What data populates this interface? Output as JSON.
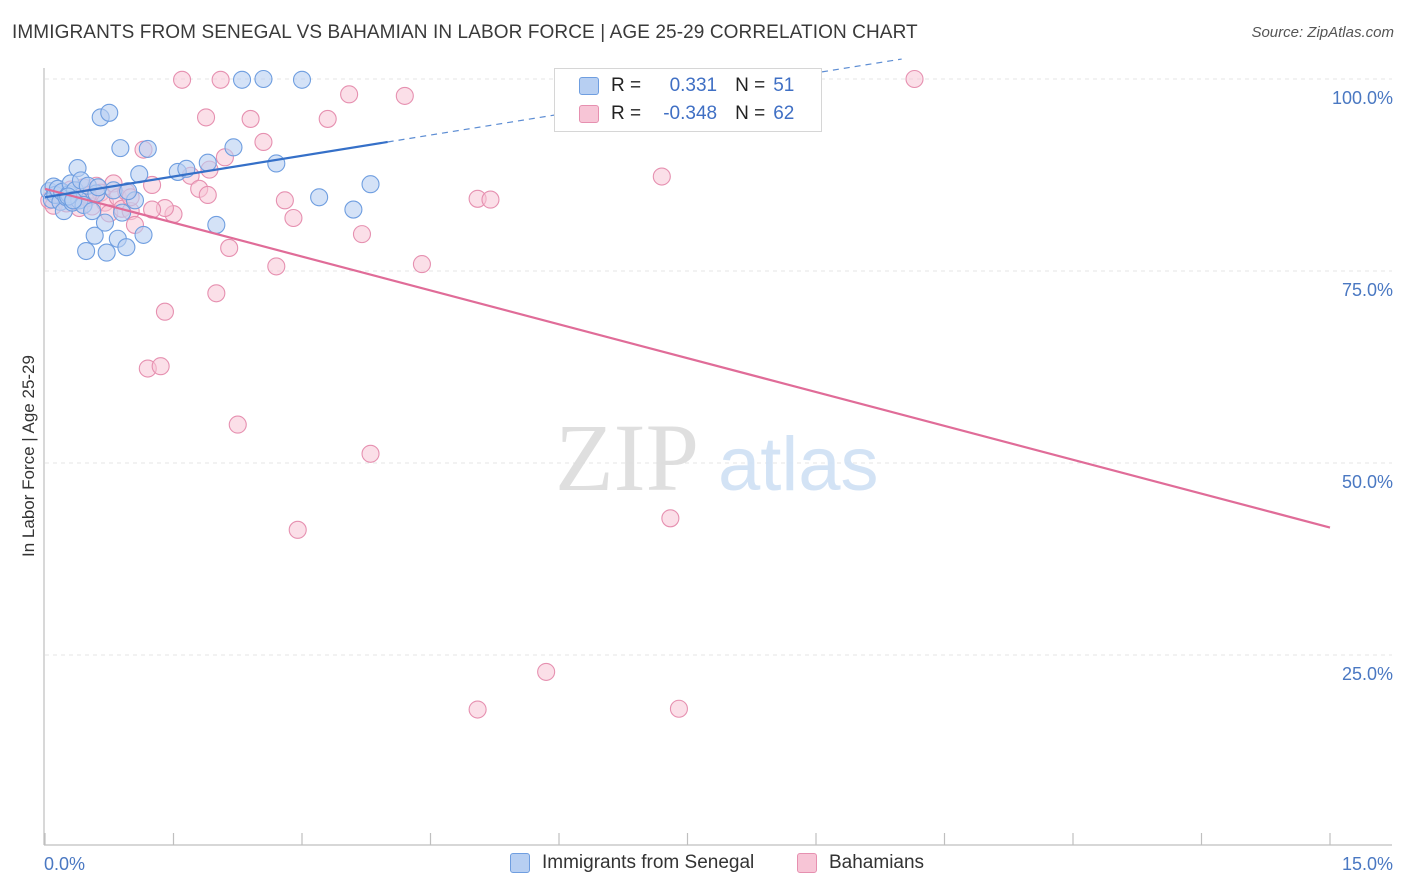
{
  "header": {
    "title": "IMMIGRANTS FROM SENEGAL VS BAHAMIAN IN LABOR FORCE | AGE 25-29 CORRELATION CHART",
    "source": "Source: ZipAtlas.com"
  },
  "watermark": {
    "zip": "ZIP",
    "atlas": "atlas"
  },
  "legend": {
    "rows": [
      {
        "r_label": "R =",
        "r_value": "0.331",
        "n_label": "N =",
        "n_value": "51"
      },
      {
        "r_label": "R =",
        "r_value": "-0.348",
        "n_label": "N =",
        "n_value": "62"
      }
    ]
  },
  "bottom_legend": {
    "senegal": "Immigrants from Senegal",
    "bahamians": "Bahamians"
  },
  "colors": {
    "senegal_fill": "#b7cff2",
    "senegal_stroke": "#6f9ee0",
    "senegal_line": "#3570c8",
    "bahamian_fill": "#f7c5d6",
    "bahamian_stroke": "#e690b0",
    "bahamian_line": "#e06c98",
    "tick_text": "#4a78c2",
    "grid": "#e4e4e4"
  },
  "chart_data": {
    "type": "scatter",
    "title": "IMMIGRANTS FROM SENEGAL VS BAHAMIAN IN LABOR FORCE | AGE 25-29 CORRELATION CHART",
    "xlabel": "",
    "ylabel": "In Labor Force | Age 25-29",
    "xlim": [
      0,
      15
    ],
    "ylim": [
      0,
      104
    ],
    "x_tick_labels": [
      "0.0%",
      "15.0%"
    ],
    "y_ticks": [
      25,
      50,
      75,
      100
    ],
    "y_tick_labels": [
      "25.0%",
      "50.0%",
      "75.0%",
      "100.0%"
    ],
    "grid": true,
    "series": [
      {
        "name": "Immigrants from Senegal",
        "r": 0.331,
        "n": 51,
        "trend": {
          "x": [
            0.0,
            4.0
          ],
          "y": [
            84.6,
            91.8
          ],
          "dashed_to": [
            10.0,
            102.6
          ]
        },
        "points": [
          [
            0.05,
            85.4
          ],
          [
            0.08,
            84.3
          ],
          [
            0.1,
            86.0
          ],
          [
            0.12,
            84.9
          ],
          [
            0.15,
            85.7
          ],
          [
            0.18,
            84.0
          ],
          [
            0.2,
            85.3
          ],
          [
            0.22,
            82.8
          ],
          [
            0.25,
            84.6
          ],
          [
            0.28,
            85.0
          ],
          [
            0.3,
            86.4
          ],
          [
            0.32,
            83.9
          ],
          [
            0.35,
            85.5
          ],
          [
            0.38,
            88.4
          ],
          [
            0.4,
            84.2
          ],
          [
            0.42,
            86.8
          ],
          [
            0.45,
            83.6
          ],
          [
            0.48,
            77.6
          ],
          [
            0.5,
            86.1
          ],
          [
            0.55,
            82.8
          ],
          [
            0.58,
            79.6
          ],
          [
            0.6,
            85.1
          ],
          [
            0.65,
            95.0
          ],
          [
            0.7,
            81.3
          ],
          [
            0.72,
            77.4
          ],
          [
            0.75,
            95.6
          ],
          [
            0.8,
            85.5
          ],
          [
            0.85,
            79.2
          ],
          [
            0.88,
            91.0
          ],
          [
            0.9,
            82.6
          ],
          [
            0.95,
            78.1
          ],
          [
            1.05,
            84.2
          ],
          [
            1.1,
            87.6
          ],
          [
            1.15,
            79.7
          ],
          [
            1.2,
            90.9
          ],
          [
            1.55,
            87.9
          ],
          [
            1.65,
            88.3
          ],
          [
            1.9,
            89.1
          ],
          [
            2.0,
            81.0
          ],
          [
            2.2,
            91.1
          ],
          [
            2.3,
            99.9
          ],
          [
            2.55,
            100.0
          ],
          [
            2.7,
            89.0
          ],
          [
            3.0,
            99.9
          ],
          [
            3.2,
            84.6
          ],
          [
            3.6,
            83.0
          ],
          [
            3.8,
            86.3
          ],
          [
            0.27,
            84.7
          ],
          [
            0.62,
            85.9
          ],
          [
            0.97,
            85.4
          ],
          [
            0.33,
            84.2
          ]
        ]
      },
      {
        "name": "Bahamians",
        "r": -0.348,
        "n": 62,
        "trend": {
          "x": [
            0.0,
            15.0
          ],
          "y": [
            85.7,
            41.6
          ]
        },
        "points": [
          [
            0.05,
            84.2
          ],
          [
            0.1,
            83.5
          ],
          [
            0.15,
            85.0
          ],
          [
            0.2,
            84.7
          ],
          [
            0.25,
            83.8
          ],
          [
            0.3,
            85.6
          ],
          [
            0.35,
            84.1
          ],
          [
            0.4,
            83.2
          ],
          [
            0.45,
            85.9
          ],
          [
            0.5,
            84.5
          ],
          [
            0.55,
            83.4
          ],
          [
            0.6,
            86.1
          ],
          [
            0.65,
            85.2
          ],
          [
            0.7,
            83.9
          ],
          [
            0.75,
            82.5
          ],
          [
            0.8,
            86.4
          ],
          [
            0.85,
            84.6
          ],
          [
            0.9,
            83.1
          ],
          [
            0.95,
            85.3
          ],
          [
            1.0,
            82.8
          ],
          [
            1.05,
            81.0
          ],
          [
            1.15,
            90.8
          ],
          [
            1.2,
            62.3
          ],
          [
            1.25,
            86.2
          ],
          [
            1.35,
            62.6
          ],
          [
            1.4,
            69.7
          ],
          [
            1.5,
            82.4
          ],
          [
            1.6,
            99.9
          ],
          [
            1.7,
            87.4
          ],
          [
            1.8,
            85.7
          ],
          [
            1.88,
            95.0
          ],
          [
            1.92,
            88.2
          ],
          [
            2.0,
            72.1
          ],
          [
            2.05,
            99.9
          ],
          [
            2.15,
            78.0
          ],
          [
            2.25,
            55.0
          ],
          [
            2.4,
            94.8
          ],
          [
            2.55,
            91.8
          ],
          [
            2.7,
            75.6
          ],
          [
            2.8,
            84.2
          ],
          [
            2.95,
            41.3
          ],
          [
            3.3,
            94.8
          ],
          [
            3.55,
            98.0
          ],
          [
            3.7,
            79.8
          ],
          [
            3.8,
            51.2
          ],
          [
            4.2,
            97.8
          ],
          [
            4.4,
            75.9
          ],
          [
            5.05,
            84.4
          ],
          [
            5.2,
            84.3
          ],
          [
            5.85,
            22.8
          ],
          [
            5.05,
            17.9
          ],
          [
            7.2,
            87.3
          ],
          [
            7.3,
            42.8
          ],
          [
            7.4,
            18.0
          ],
          [
            10.15,
            100.0
          ],
          [
            1.4,
            83.2
          ],
          [
            2.9,
            81.9
          ],
          [
            1.25,
            83.0
          ],
          [
            2.1,
            89.8
          ],
          [
            0.5,
            84.9
          ],
          [
            1.0,
            84.6
          ],
          [
            1.9,
            84.9
          ]
        ]
      }
    ]
  }
}
